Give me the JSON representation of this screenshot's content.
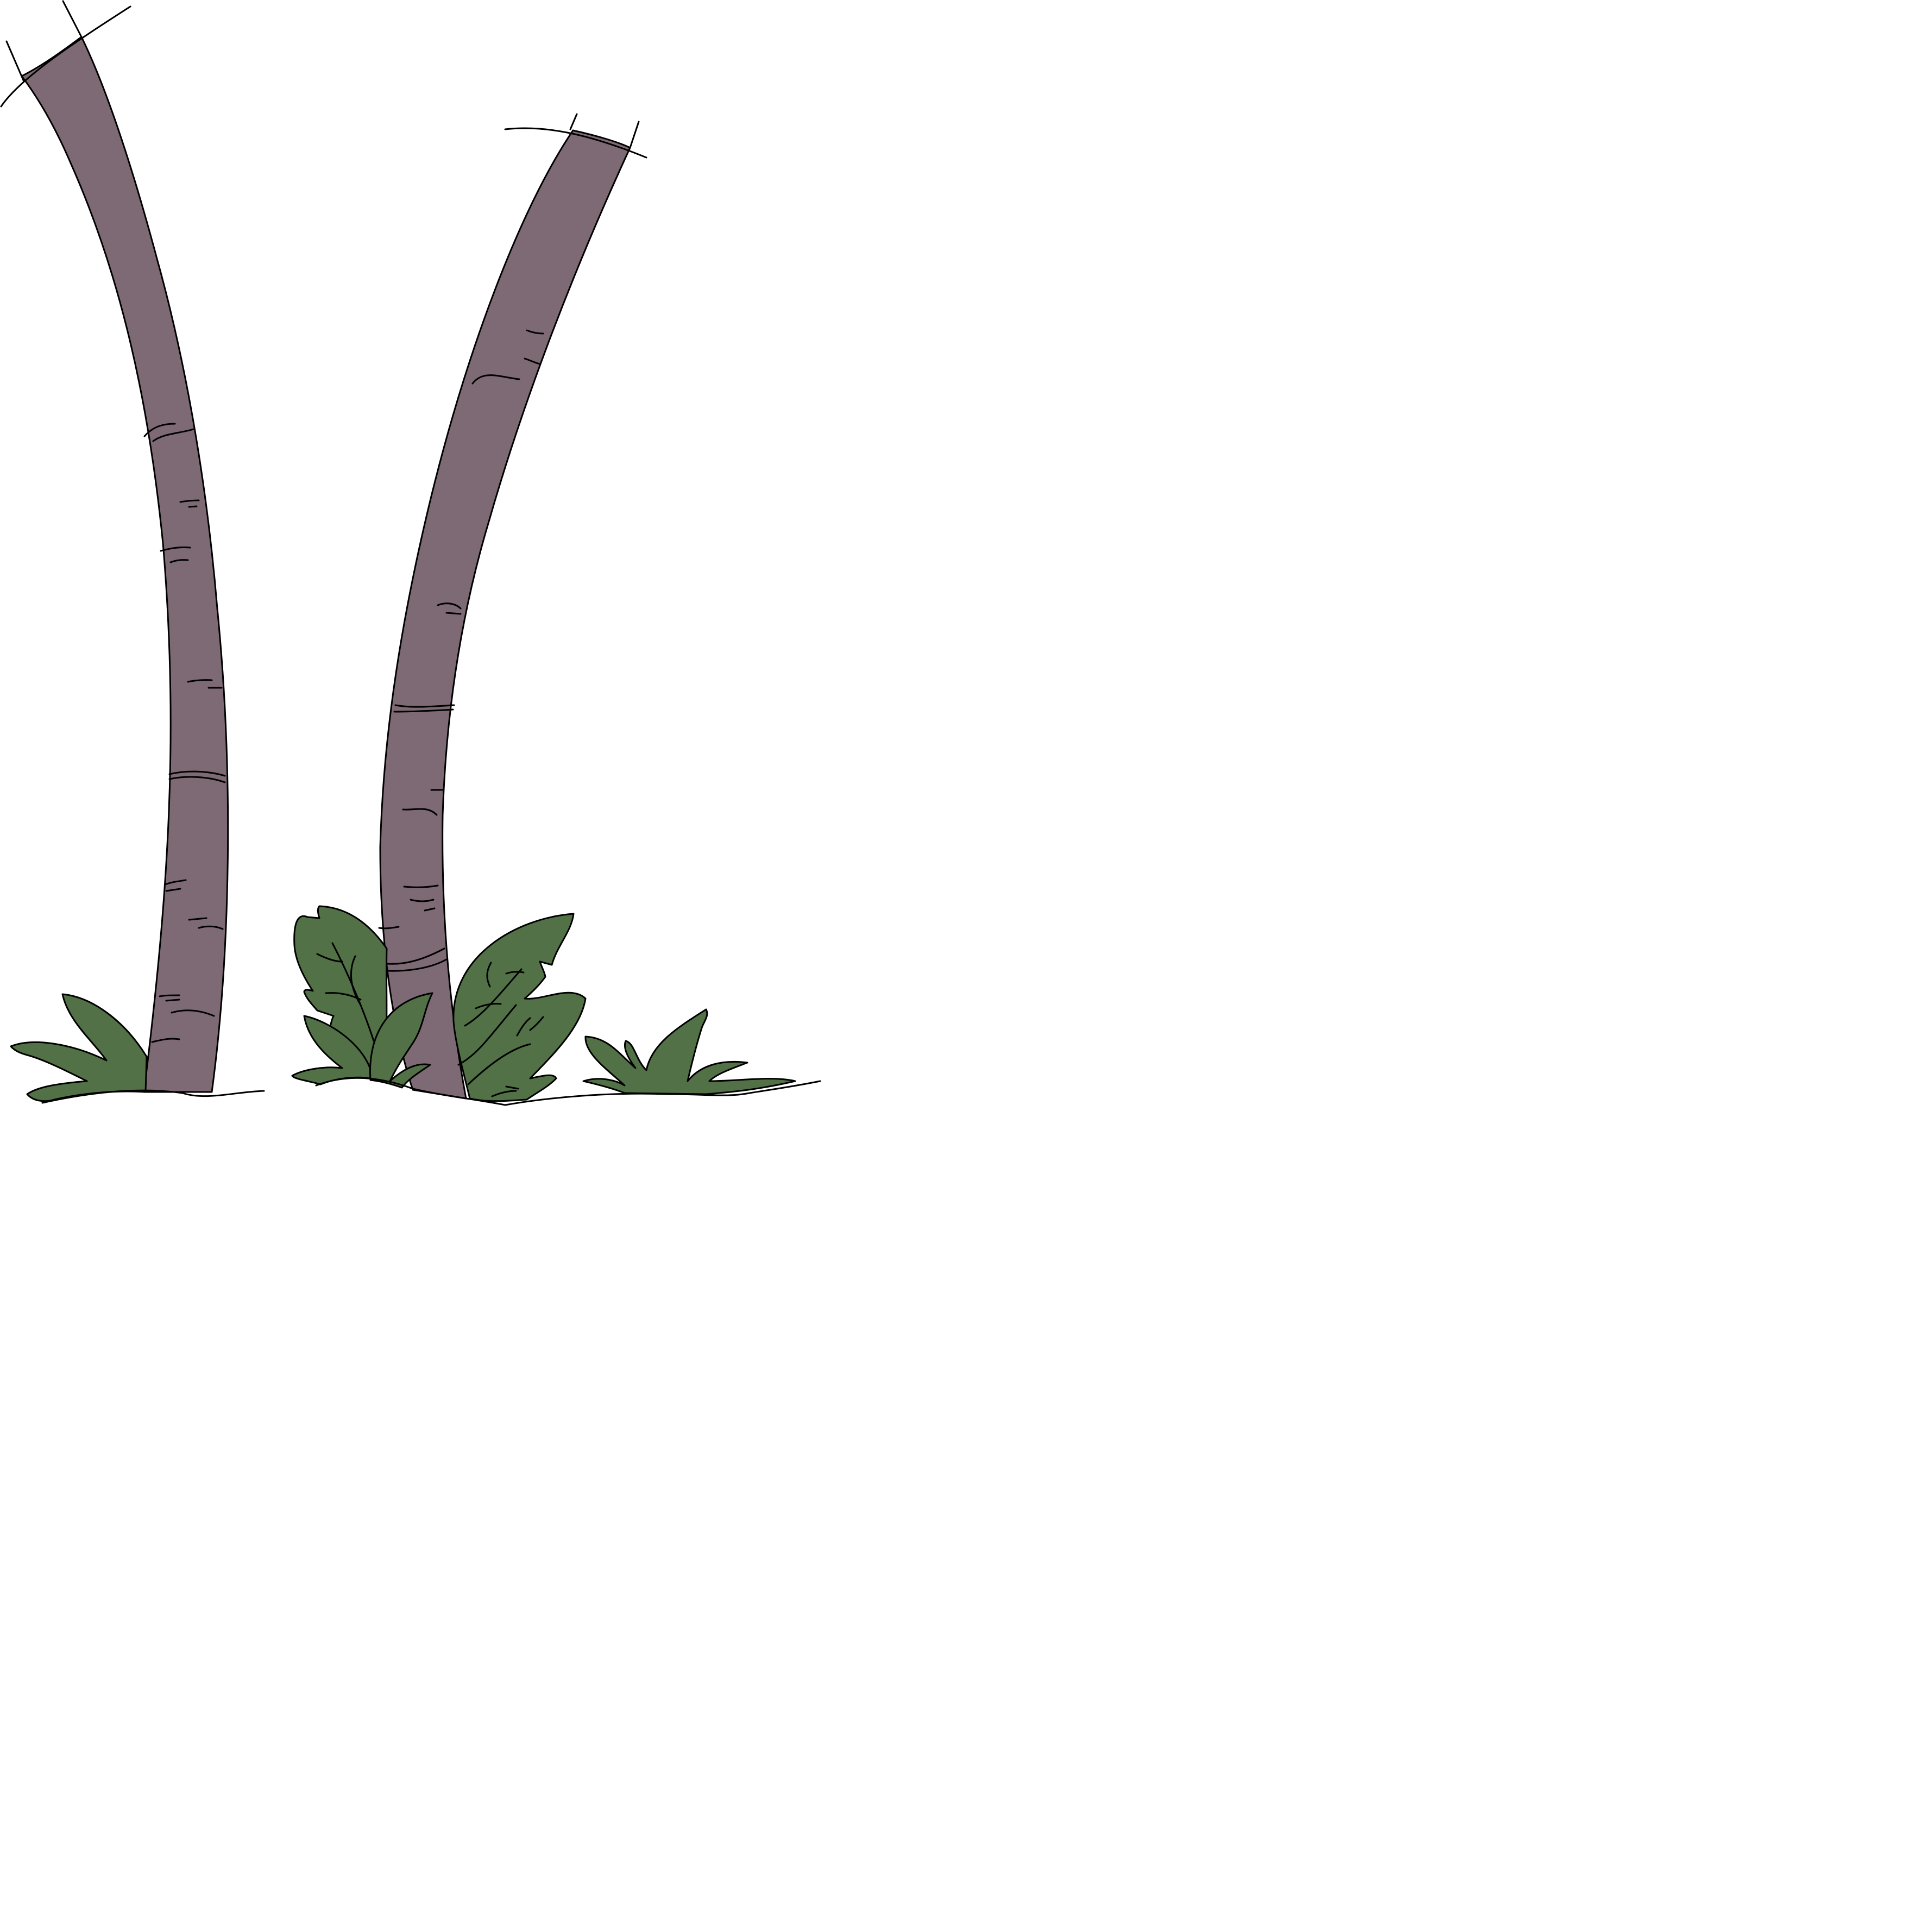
{
  "scene": {
    "background_color": "#ffffff",
    "trunk_color": "#7e6a74",
    "foliage_color": "#527147",
    "outline_color": "#000000"
  },
  "elements": {
    "left_trunk": "tree-trunk",
    "right_trunk": "tree-trunk",
    "bushes": "leafy-bush"
  }
}
